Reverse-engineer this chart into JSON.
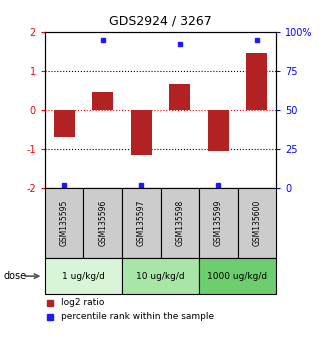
{
  "title": "GDS2924 / 3267",
  "samples": [
    "GSM135595",
    "GSM135596",
    "GSM135597",
    "GSM135598",
    "GSM135599",
    "GSM135600"
  ],
  "log2_ratios": [
    -0.7,
    0.45,
    -1.15,
    0.65,
    -1.05,
    1.45
  ],
  "percentile_ranks": [
    2,
    95,
    2,
    92,
    2,
    95
  ],
  "bar_color": "#b22222",
  "dot_color": "#1a1aff",
  "ylim_left": [
    -2,
    2
  ],
  "ylim_right": [
    0,
    100
  ],
  "yticks_left": [
    -2,
    -1,
    0,
    1,
    2
  ],
  "ytick_labels_left": [
    "-2",
    "-1",
    "0",
    "1",
    "2"
  ],
  "yticks_right": [
    0,
    25,
    50,
    75,
    100
  ],
  "ytick_labels_right": [
    "0",
    "25",
    "50",
    "75",
    "100%"
  ],
  "dose_groups": [
    {
      "label": "1 ug/kg/d",
      "color": "#d8f5d8"
    },
    {
      "label": "10 ug/kg/d",
      "color": "#a8e6a8"
    },
    {
      "label": "1000 ug/kg/d",
      "color": "#6dce6d"
    }
  ],
  "legend_items": [
    {
      "color": "#b22222",
      "label": "log2 ratio"
    },
    {
      "color": "#1a1aff",
      "label": "percentile rank within the sample"
    }
  ],
  "sample_box_color": "#cccccc",
  "bg_color": "#ffffff"
}
